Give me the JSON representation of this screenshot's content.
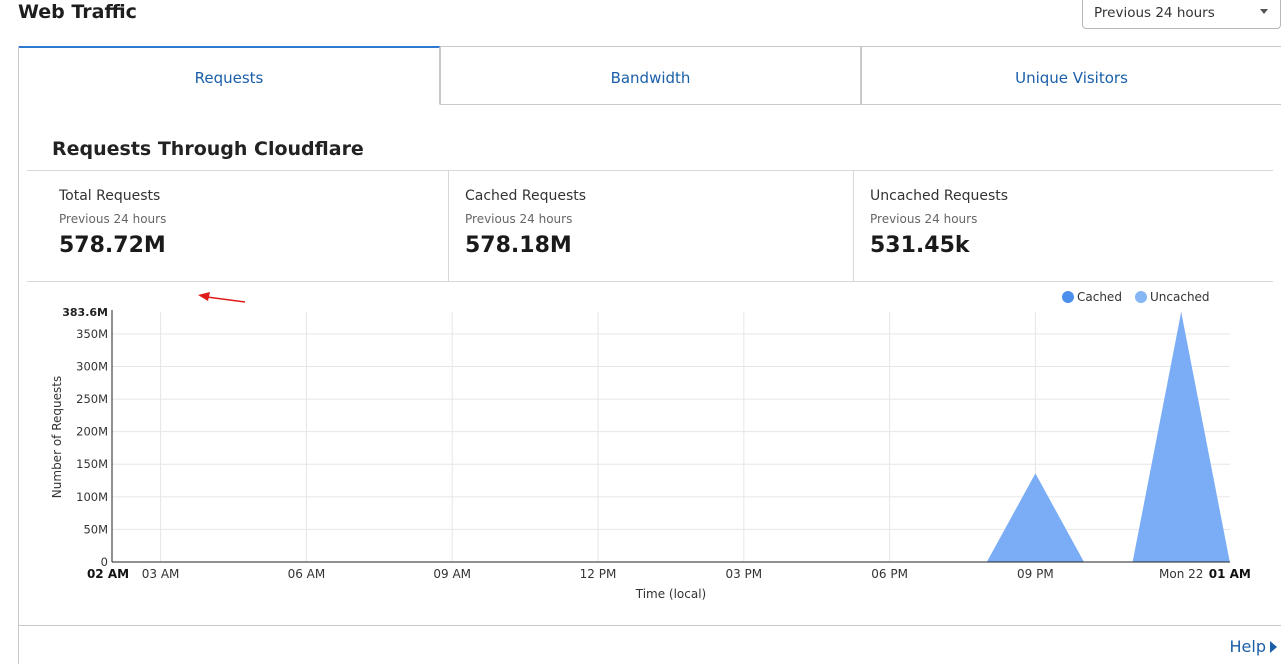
{
  "page": {
    "title": "Web Traffic",
    "time_range": "Previous 24 hours"
  },
  "tabs": [
    {
      "label": "Requests",
      "active": true
    },
    {
      "label": "Bandwidth",
      "active": false
    },
    {
      "label": "Unique Visitors",
      "active": false
    }
  ],
  "section": {
    "title": "Requests Through Cloudflare"
  },
  "stats": [
    {
      "name": "Total Requests",
      "period": "Previous 24 hours",
      "value": "578.72M"
    },
    {
      "name": "Cached Requests",
      "period": "Previous 24 hours",
      "value": "578.18M"
    },
    {
      "name": "Uncached Requests",
      "period": "Previous 24 hours",
      "value": "531.45k"
    }
  ],
  "colors": {
    "accent": "#2f7ad0",
    "link": "#1a5fa8",
    "cached": "#4d8fec",
    "uncached": "#86b6f3",
    "area_fill": "#7aadf5",
    "annotation": "#e01b1b"
  },
  "chart_data": {
    "type": "area",
    "xlabel": "Time (local)",
    "ylabel": "Number of Requests",
    "y_max_label": "383.6M",
    "yticks": [
      "0",
      "50M",
      "100M",
      "150M",
      "200M",
      "250M",
      "300M",
      "350M"
    ],
    "ylim": [
      0,
      383.6
    ],
    "y_unit": "M",
    "xlim_hours": [
      0,
      23.5
    ],
    "x_ticks": [
      {
        "label": "02 AM",
        "hour": 0,
        "bold": true
      },
      {
        "label": "03 AM",
        "hour": 1,
        "bold": false
      },
      {
        "label": "06 AM",
        "hour": 4,
        "bold": false
      },
      {
        "label": "09 AM",
        "hour": 7,
        "bold": false
      },
      {
        "label": "12 PM",
        "hour": 10,
        "bold": false
      },
      {
        "label": "03 PM",
        "hour": 13,
        "bold": false
      },
      {
        "label": "06 PM",
        "hour": 16,
        "bold": false
      },
      {
        "label": "09 PM",
        "hour": 19,
        "bold": false
      },
      {
        "label": "Mon 22",
        "hour": 22,
        "bold": false
      },
      {
        "label": "01 AM",
        "hour": 23,
        "bold": true
      }
    ],
    "legend": [
      {
        "name": "Cached",
        "color": "#4d8fec"
      },
      {
        "name": "Uncached",
        "color": "#86b6f3"
      }
    ],
    "legend_position": "top-right",
    "grid": true,
    "series": [
      {
        "name": "Cached",
        "hours": [
          0,
          18,
          19,
          20,
          21,
          22,
          23,
          23.5
        ],
        "values": [
          0,
          0,
          136,
          0,
          0,
          383.6,
          0,
          0
        ]
      }
    ]
  },
  "help": {
    "label": "Help"
  }
}
